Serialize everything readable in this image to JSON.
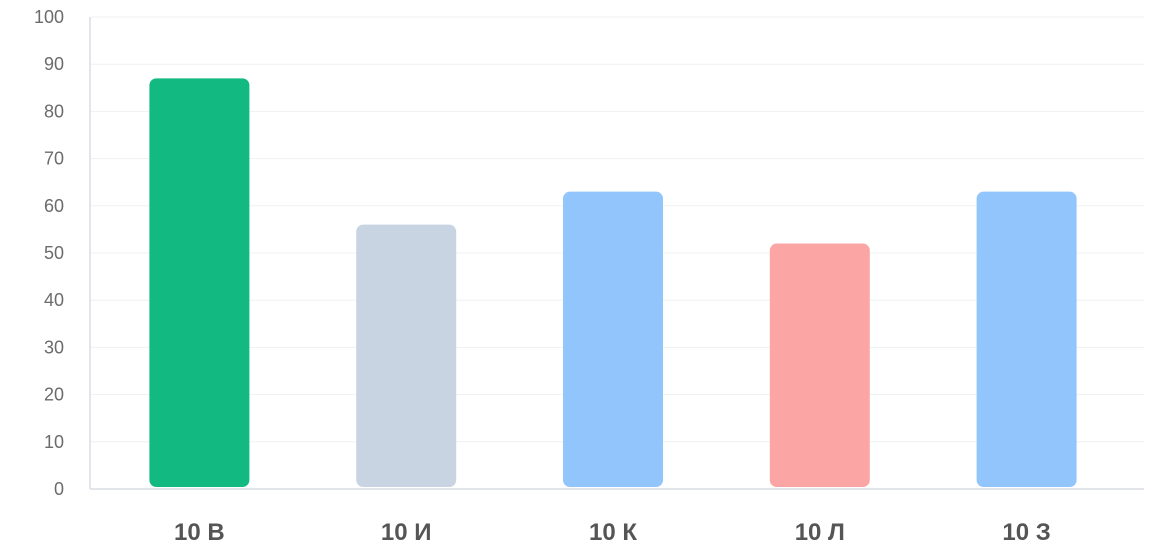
{
  "chart_data": {
    "type": "bar",
    "categories": [
      "10 В",
      "10 И",
      "10 К",
      "10 Л",
      "10 З"
    ],
    "values": [
      87,
      56,
      63,
      52,
      63
    ],
    "colors": [
      "#12b981",
      "#c9d4e2",
      "#93c5fd",
      "#fca5a5",
      "#93c5fd"
    ],
    "ylim": [
      0,
      100
    ],
    "yticks": [
      0,
      10,
      20,
      30,
      40,
      50,
      60,
      70,
      80,
      90,
      100
    ],
    "grid": true,
    "title": "",
    "xlabel": "",
    "ylabel": ""
  }
}
